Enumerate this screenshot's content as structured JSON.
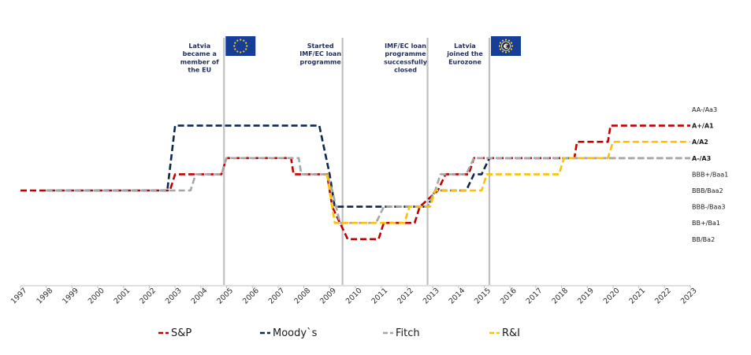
{
  "chart_data": {
    "type": "line",
    "title": "",
    "xlabel": "",
    "ylabel": "",
    "xlim": [
      1997,
      2023
    ],
    "x_ticks": [
      "1997",
      "1998",
      "1999",
      "2000",
      "2001",
      "2002",
      "2003",
      "2004",
      "2005",
      "2006",
      "2007",
      "2008",
      "2009",
      "2010",
      "2011",
      "2012",
      "2013",
      "2014",
      "2015",
      "2016",
      "2017",
      "2018",
      "2019",
      "2020",
      "2021",
      "2022",
      "2023"
    ],
    "rating_scale": [
      {
        "label": "AA-/Aa3",
        "level": 10,
        "bold": false
      },
      {
        "label": "A+/A1",
        "level": 9,
        "bold": true
      },
      {
        "label": "A/A2",
        "level": 8,
        "bold": true
      },
      {
        "label": "A-/A3",
        "level": 7,
        "bold": true
      },
      {
        "label": "BBB+/Baa1",
        "level": 6,
        "bold": false
      },
      {
        "label": "BBB/Baa2",
        "level": 5,
        "bold": false
      },
      {
        "label": "BBB-/Baa3",
        "level": 4,
        "bold": false
      },
      {
        "label": "BB+/Ba1",
        "level": 3,
        "bold": false
      },
      {
        "label": "BB/Ba2",
        "level": 2,
        "bold": false
      }
    ],
    "series": [
      {
        "name": "S&P",
        "color": "#c00000",
        "points": [
          [
            1997,
            5
          ],
          [
            2002.8,
            5
          ],
          [
            2003,
            6
          ],
          [
            2004.8,
            6
          ],
          [
            2005,
            7
          ],
          [
            2007.5,
            7
          ],
          [
            2007.6,
            6
          ],
          [
            2008.9,
            6
          ],
          [
            2009.1,
            4
          ],
          [
            2009.4,
            3
          ],
          [
            2009.7,
            2
          ],
          [
            2010.9,
            2
          ],
          [
            2011.1,
            3
          ],
          [
            2012.3,
            3
          ],
          [
            2012.5,
            4
          ],
          [
            2013.2,
            5
          ],
          [
            2013.5,
            6
          ],
          [
            2014.4,
            6
          ],
          [
            2014.6,
            7
          ],
          [
            2018.5,
            7
          ],
          [
            2018.6,
            8
          ],
          [
            2019.8,
            8
          ],
          [
            2019.9,
            9
          ],
          [
            2023,
            9
          ]
        ]
      },
      {
        "name": "Moody`s",
        "color": "#0c2650",
        "points": [
          [
            1998,
            5
          ],
          [
            2002.7,
            5
          ],
          [
            2003,
            9
          ],
          [
            2008.6,
            9
          ],
          [
            2009,
            6
          ],
          [
            2009.2,
            4
          ],
          [
            2012.8,
            4
          ],
          [
            2013.1,
            5
          ],
          [
            2014.3,
            5
          ],
          [
            2014.6,
            6
          ],
          [
            2014.9,
            6
          ],
          [
            2015.2,
            7
          ],
          [
            2023,
            7
          ]
        ]
      },
      {
        "name": "Fitch",
        "color": "#a6a6a6",
        "points": [
          [
            1998,
            5
          ],
          [
            2003.6,
            5
          ],
          [
            2003.8,
            6
          ],
          [
            2004.8,
            6
          ],
          [
            2005,
            7
          ],
          [
            2007.8,
            7
          ],
          [
            2007.9,
            6
          ],
          [
            2008.9,
            6
          ],
          [
            2009.1,
            5
          ],
          [
            2009.4,
            3
          ],
          [
            2010.8,
            3
          ],
          [
            2011.1,
            4
          ],
          [
            2012.8,
            4
          ],
          [
            2013.1,
            5
          ],
          [
            2013.3,
            6
          ],
          [
            2014.3,
            6
          ],
          [
            2014.6,
            7
          ],
          [
            2023,
            7
          ]
        ]
      },
      {
        "name": "R&I",
        "color": "#ffc000",
        "points": [
          [
            2008.9,
            6
          ],
          [
            2009.2,
            3
          ],
          [
            2011.9,
            3
          ],
          [
            2012.1,
            4
          ],
          [
            2012.9,
            4
          ],
          [
            2013.1,
            5
          ],
          [
            2014.9,
            5
          ],
          [
            2015.1,
            6
          ],
          [
            2017.9,
            6
          ],
          [
            2018.1,
            7
          ],
          [
            2019.8,
            7
          ],
          [
            2020,
            8
          ],
          [
            2023,
            8
          ]
        ]
      }
    ],
    "events": [
      {
        "x": 2004.9,
        "lines": [
          "Latvia",
          "became a",
          "member of",
          "the EU"
        ],
        "flag": "eu-flag"
      },
      {
        "x": 2009.5,
        "lines": [
          "Started",
          "IMF/EC loan",
          "programme"
        ],
        "flag": ""
      },
      {
        "x": 2012.8,
        "lines": [
          "IMF/EC loan",
          "programme",
          "successfully",
          "closed"
        ],
        "flag": ""
      },
      {
        "x": 2015.2,
        "lines": [
          "Latvia",
          "joined the",
          "Eurozone"
        ],
        "flag": "euro-flag"
      }
    ],
    "legend": {
      "position": "bottom",
      "items": [
        "S&P",
        "Moody`s",
        "Fitch",
        "R&I"
      ]
    },
    "grid": false
  }
}
